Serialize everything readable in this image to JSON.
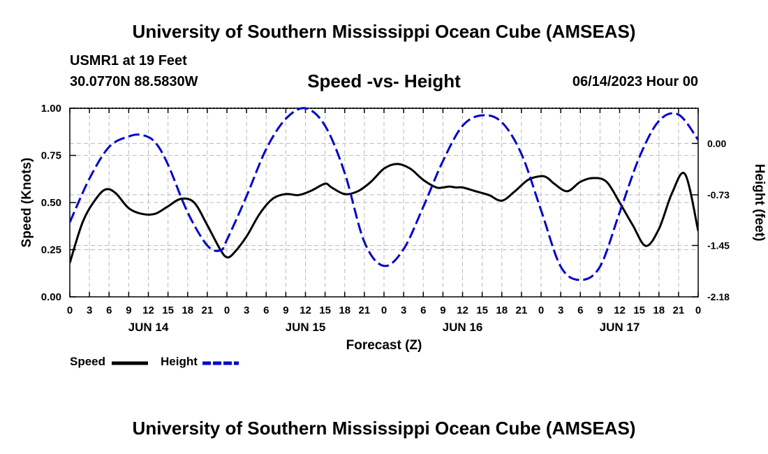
{
  "header": {
    "title_top": "University of Southern Mississippi Ocean Cube (AMSEAS)",
    "station": "USMR1 at 19 Feet",
    "coords": "30.0770N  88.5830W",
    "chart_title": "Speed -vs- Height",
    "datetime": "06/14/2023 Hour 00",
    "title_bottom": "University of Southern Mississippi Ocean Cube (AMSEAS)"
  },
  "legend": {
    "speed_label": "Speed",
    "height_label": "Height"
  },
  "colors": {
    "speed": "#000000",
    "height": "#0000cc",
    "grid": "#bbbbbb"
  },
  "chart_data": {
    "type": "line",
    "title": "Speed -vs- Height",
    "xlabel": "Forecast (Z)",
    "ylabel": "Speed (Knots)",
    "y2label": "Height (feet)",
    "x_range": [
      0,
      96
    ],
    "ylim": [
      0,
      1
    ],
    "y2lim": [
      -2.18,
      0.5
    ],
    "x_ticks": [
      0,
      3,
      6,
      9,
      12,
      15,
      18,
      21,
      24,
      27,
      30,
      33,
      36,
      39,
      42,
      45,
      48,
      51,
      54,
      57,
      60,
      63,
      66,
      69,
      72,
      75,
      78,
      81,
      84,
      87,
      90,
      93,
      96
    ],
    "x_tick_labels": [
      "0",
      "3",
      "6",
      "9",
      "12",
      "15",
      "18",
      "21",
      "0",
      "3",
      "6",
      "9",
      "12",
      "15",
      "18",
      "21",
      "0",
      "3",
      "6",
      "9",
      "12",
      "15",
      "18",
      "21",
      "0",
      "3",
      "6",
      "9",
      "12",
      "15",
      "18",
      "21",
      "0"
    ],
    "day_labels": [
      {
        "x": 12,
        "label": "JUN 14"
      },
      {
        "x": 36,
        "label": "JUN 15"
      },
      {
        "x": 60,
        "label": "JUN 16"
      },
      {
        "x": 84,
        "label": "JUN 17"
      }
    ],
    "y_ticks": [
      0.0,
      0.25,
      0.5,
      0.75,
      1.0
    ],
    "y_tick_labels": [
      "0.00",
      "0.25",
      "0.50",
      "0.75",
      "1.00"
    ],
    "y2_ticks": [
      0.0,
      -0.73,
      -1.45,
      -2.18
    ],
    "y2_tick_labels": [
      "0.00",
      "-0.73",
      "-1.45",
      "-2.18"
    ],
    "series": [
      {
        "name": "Speed",
        "axis": "left",
        "dash": "solid",
        "x": [
          0,
          2,
          4,
          5.5,
          7,
          9,
          11,
          13,
          15,
          17,
          19,
          21,
          23,
          24,
          25,
          27,
          29,
          31,
          33,
          35,
          37,
          39,
          40,
          42,
          44,
          46,
          48,
          50,
          52,
          54,
          56,
          57,
          58,
          59,
          60,
          62,
          64,
          66,
          68,
          70,
          72,
          73,
          74,
          76,
          78,
          80,
          82,
          84,
          86,
          88,
          90,
          92,
          94,
          96
        ],
        "values": [
          0.18,
          0.4,
          0.52,
          0.57,
          0.55,
          0.47,
          0.44,
          0.44,
          0.48,
          0.52,
          0.5,
          0.38,
          0.25,
          0.21,
          0.23,
          0.32,
          0.44,
          0.52,
          0.545,
          0.54,
          0.565,
          0.6,
          0.58,
          0.545,
          0.56,
          0.61,
          0.68,
          0.705,
          0.68,
          0.62,
          0.58,
          0.58,
          0.585,
          0.58,
          0.58,
          0.56,
          0.54,
          0.51,
          0.56,
          0.62,
          0.64,
          0.63,
          0.6,
          0.56,
          0.61,
          0.63,
          0.61,
          0.5,
          0.38,
          0.27,
          0.36,
          0.55,
          0.65,
          0.35
        ]
      },
      {
        "name": "Height",
        "axis": "right",
        "dash": "dashed",
        "x": [
          0,
          3,
          6,
          9,
          11,
          13,
          15,
          18,
          21,
          23,
          24,
          27,
          30,
          33,
          36,
          39,
          42,
          45,
          48,
          51,
          54,
          57,
          60,
          63,
          66,
          69,
          72,
          75,
          78,
          81,
          84,
          87,
          90,
          93,
          96
        ],
        "values": [
          -1.12,
          -0.5,
          -0.05,
          0.1,
          0.12,
          0.02,
          -0.3,
          -0.98,
          -1.45,
          -1.52,
          -1.37,
          -0.75,
          -0.08,
          0.35,
          0.5,
          0.25,
          -0.42,
          -1.4,
          -1.74,
          -1.5,
          -0.9,
          -0.25,
          0.25,
          0.4,
          0.3,
          -0.15,
          -0.95,
          -1.75,
          -1.94,
          -1.75,
          -0.98,
          -0.2,
          0.32,
          0.41,
          0.05
        ]
      }
    ],
    "legend_position": "bottom-left"
  }
}
